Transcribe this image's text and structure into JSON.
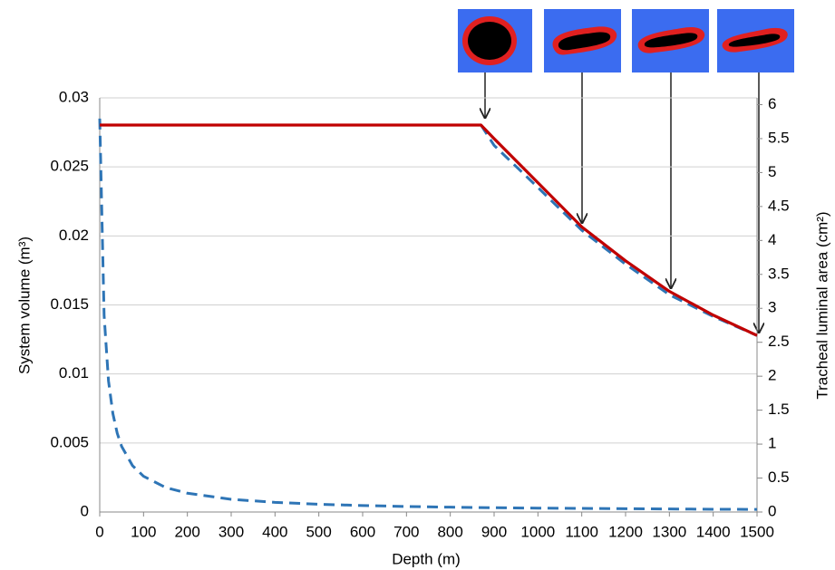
{
  "chart_data": {
    "type": "line",
    "x_label": "Depth (m)",
    "y_label": "System volume (m³)",
    "y2_label": "Tracheal luminal area (cm²)",
    "x": [
      0,
      10,
      20,
      30,
      40,
      50,
      75,
      100,
      150,
      200,
      300,
      400,
      500,
      600,
      700,
      800,
      870,
      900,
      1000,
      1100,
      1200,
      1300,
      1400,
      1500
    ],
    "series": [
      {
        "color": "#2e75b6",
        "dash": true,
        "axis": "y",
        "values": [
          0.0285,
          0.01425,
          0.0095,
          0.007125,
          0.0057,
          0.00475,
          0.00335,
          0.00259,
          0.00178,
          0.00136,
          0.00092,
          0.0007,
          0.00056,
          0.00047,
          0.0004,
          0.00035,
          0.00032,
          0.00031,
          0.00028,
          0.00026,
          0.00024,
          0.00022,
          0.0002,
          0.00019
        ]
      },
      {
        "color": "#2e75b6",
        "dash": true,
        "axis": "y2",
        "values": [
          null,
          null,
          null,
          null,
          null,
          null,
          null,
          null,
          null,
          null,
          null,
          null,
          null,
          null,
          null,
          null,
          5.7,
          5.4,
          4.78,
          4.15,
          3.65,
          3.2,
          2.88,
          2.6
        ]
      },
      {
        "color": "#c00000",
        "dash": false,
        "axis": "y2",
        "values": [
          5.7,
          5.7,
          5.7,
          5.7,
          5.7,
          5.7,
          5.7,
          5.7,
          5.7,
          5.7,
          5.7,
          5.7,
          5.7,
          5.7,
          5.7,
          5.7,
          5.7,
          5.5,
          4.85,
          4.2,
          3.7,
          3.25,
          2.9,
          2.6
        ]
      }
    ],
    "xlim": [
      0,
      1500
    ],
    "xticks": [
      0,
      100,
      200,
      300,
      400,
      500,
      600,
      700,
      800,
      900,
      1000,
      1100,
      1200,
      1300,
      1400,
      1500
    ],
    "ylim": [
      0,
      0.03
    ],
    "yticks": [
      0,
      0.005,
      0.01,
      0.015,
      0.02,
      0.025,
      0.03
    ],
    "y2lim": [
      0,
      6.1
    ],
    "y2ticks": [
      0,
      0.5,
      1,
      1.5,
      2,
      2.5,
      3,
      3.5,
      4,
      4.5,
      5,
      5.5,
      6
    ],
    "grid": true
  }
}
